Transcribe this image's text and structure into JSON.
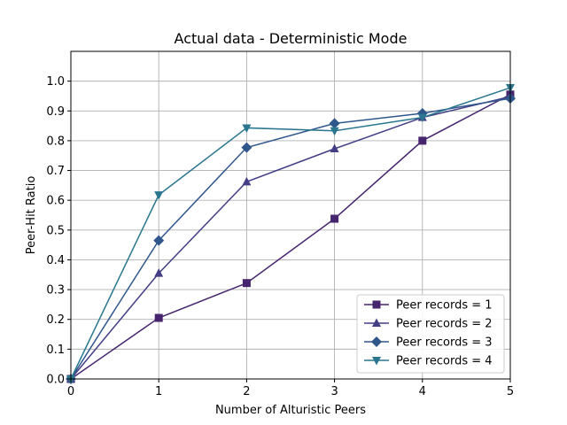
{
  "chart_data": {
    "type": "line",
    "title": "Actual data - Deterministic Mode",
    "xlabel": "Number of Alturistic Peers",
    "ylabel": "Peer-Hit Ratio",
    "xlim": [
      0,
      5
    ],
    "ylim": [
      0,
      1.1
    ],
    "xticks": [
      "0",
      "1",
      "2",
      "3",
      "4",
      "5"
    ],
    "yticks": [
      "0.0",
      "0.1",
      "0.2",
      "0.3",
      "0.4",
      "0.5",
      "0.6",
      "0.7",
      "0.8",
      "0.9",
      "1.0"
    ],
    "grid": true,
    "legend_position": "lower-right",
    "x": [
      0,
      1,
      2,
      3,
      4,
      5
    ],
    "series": [
      {
        "name": "Peer records = 1",
        "marker": "square",
        "color": "#46246e",
        "values": [
          0.0,
          0.205,
          0.322,
          0.538,
          0.8,
          0.955
        ]
      },
      {
        "name": "Peer records = 2",
        "marker": "triangle-up",
        "color": "#433e85",
        "values": [
          0.0,
          0.355,
          0.662,
          0.773,
          0.878,
          0.948
        ]
      },
      {
        "name": "Peer records = 3",
        "marker": "diamond",
        "color": "#30578c",
        "values": [
          0.0,
          0.465,
          0.777,
          0.858,
          0.892,
          0.942
        ]
      },
      {
        "name": "Peer records = 4",
        "marker": "triangle-down",
        "color": "#2a768e",
        "values": [
          0.0,
          0.618,
          0.843,
          0.833,
          0.878,
          0.978
        ]
      }
    ]
  }
}
